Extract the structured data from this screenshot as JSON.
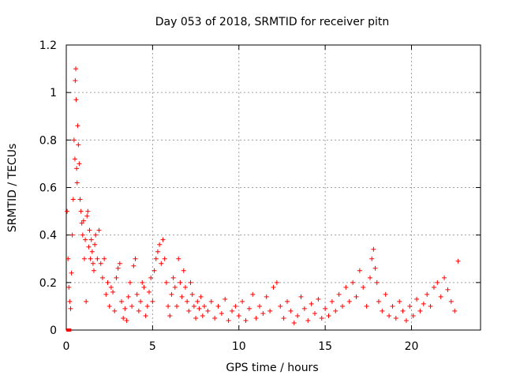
{
  "chart_data": {
    "type": "scatter",
    "title": "Day 053 of 2018, SRMTID for receiver pitn",
    "xlabel": "GPS time / hours",
    "ylabel": "SRMTID / TECUs",
    "xlim": [
      0,
      24
    ],
    "ylim": [
      0,
      1.2
    ],
    "x_ticks": [
      0,
      5,
      10,
      15,
      20
    ],
    "x_tick_labels": [
      "0",
      "5",
      "10",
      "15",
      "20"
    ],
    "y_ticks": [
      0,
      0.2,
      0.4,
      0.6,
      0.8,
      1,
      1.2
    ],
    "y_tick_labels": [
      "0",
      "0.2",
      "0.4",
      "0.6",
      "0.8",
      "1",
      "1.2"
    ],
    "grid": true,
    "marker": "+",
    "series": [
      {
        "name": "SRMTID",
        "color": "#ff0000",
        "points": [
          [
            0.05,
            0.5
          ],
          [
            0.1,
            0.3
          ],
          [
            0.15,
            0.18
          ],
          [
            0.2,
            0.12
          ],
          [
            0.25,
            0.09
          ],
          [
            0.3,
            0.24
          ],
          [
            0.35,
            0.4
          ],
          [
            0.4,
            0.55
          ],
          [
            0.45,
            0.8
          ],
          [
            0.5,
            0.72
          ],
          [
            0.52,
            1.05
          ],
          [
            0.55,
            1.1
          ],
          [
            0.57,
            0.97
          ],
          [
            0.6,
            0.68
          ],
          [
            0.63,
            0.62
          ],
          [
            0.66,
            0.86
          ],
          [
            0.7,
            0.78
          ],
          [
            0.75,
            0.7
          ],
          [
            0.8,
            0.55
          ],
          [
            0.85,
            0.5
          ],
          [
            0.9,
            0.45
          ],
          [
            0.95,
            0.4
          ],
          [
            1.0,
            0.46
          ],
          [
            1.05,
            0.3
          ],
          [
            1.1,
            0.38
          ],
          [
            1.15,
            0.12
          ],
          [
            1.2,
            0.48
          ],
          [
            1.25,
            0.5
          ],
          [
            1.3,
            0.35
          ],
          [
            1.35,
            0.42
          ],
          [
            1.4,
            0.3
          ],
          [
            1.45,
            0.38
          ],
          [
            1.5,
            0.33
          ],
          [
            1.55,
            0.28
          ],
          [
            1.6,
            0.25
          ],
          [
            1.65,
            0.36
          ],
          [
            1.7,
            0.4
          ],
          [
            1.8,
            0.3
          ],
          [
            1.9,
            0.42
          ],
          [
            2.0,
            0.28
          ],
          [
            2.1,
            0.22
          ],
          [
            2.2,
            0.3
          ],
          [
            2.3,
            0.15
          ],
          [
            2.4,
            0.2
          ],
          [
            2.5,
            0.1
          ],
          [
            2.6,
            0.18
          ],
          [
            2.7,
            0.16
          ],
          [
            2.8,
            0.08
          ],
          [
            2.9,
            0.22
          ],
          [
            3.0,
            0.26
          ],
          [
            3.1,
            0.28
          ],
          [
            3.2,
            0.12
          ],
          [
            3.3,
            0.05
          ],
          [
            3.4,
            0.09
          ],
          [
            3.5,
            0.04
          ],
          [
            3.6,
            0.14
          ],
          [
            3.7,
            0.2
          ],
          [
            3.8,
            0.1
          ],
          [
            3.9,
            0.27
          ],
          [
            4.0,
            0.3
          ],
          [
            4.1,
            0.15
          ],
          [
            4.2,
            0.08
          ],
          [
            4.3,
            0.12
          ],
          [
            4.4,
            0.2
          ],
          [
            4.5,
            0.18
          ],
          [
            4.6,
            0.06
          ],
          [
            4.7,
            0.1
          ],
          [
            4.8,
            0.16
          ],
          [
            4.9,
            0.22
          ],
          [
            5.0,
            0.12
          ],
          [
            5.1,
            0.25
          ],
          [
            5.2,
            0.3
          ],
          [
            5.3,
            0.33
          ],
          [
            5.4,
            0.36
          ],
          [
            5.5,
            0.28
          ],
          [
            5.6,
            0.38
          ],
          [
            5.7,
            0.3
          ],
          [
            5.8,
            0.2
          ],
          [
            5.9,
            0.1
          ],
          [
            6.0,
            0.06
          ],
          [
            6.1,
            0.15
          ],
          [
            6.2,
            0.22
          ],
          [
            6.3,
            0.18
          ],
          [
            6.4,
            0.1
          ],
          [
            6.5,
            0.3
          ],
          [
            6.6,
            0.2
          ],
          [
            6.7,
            0.14
          ],
          [
            6.8,
            0.25
          ],
          [
            6.9,
            0.18
          ],
          [
            7.0,
            0.12
          ],
          [
            7.1,
            0.08
          ],
          [
            7.2,
            0.2
          ],
          [
            7.3,
            0.15
          ],
          [
            7.4,
            0.1
          ],
          [
            7.5,
            0.05
          ],
          [
            7.6,
            0.12
          ],
          [
            7.7,
            0.09
          ],
          [
            7.8,
            0.14
          ],
          [
            7.9,
            0.06
          ],
          [
            8.0,
            0.1
          ],
          [
            8.2,
            0.08
          ],
          [
            8.4,
            0.12
          ],
          [
            8.6,
            0.05
          ],
          [
            8.8,
            0.1
          ],
          [
            9.0,
            0.07
          ],
          [
            9.2,
            0.13
          ],
          [
            9.4,
            0.04
          ],
          [
            9.6,
            0.08
          ],
          [
            9.8,
            0.1
          ],
          [
            10.0,
            0.06
          ],
          [
            10.2,
            0.12
          ],
          [
            10.4,
            0.04
          ],
          [
            10.6,
            0.09
          ],
          [
            10.8,
            0.15
          ],
          [
            11.0,
            0.05
          ],
          [
            11.2,
            0.1
          ],
          [
            11.4,
            0.07
          ],
          [
            11.6,
            0.14
          ],
          [
            11.8,
            0.08
          ],
          [
            12.0,
            0.18
          ],
          [
            12.2,
            0.2
          ],
          [
            12.4,
            0.1
          ],
          [
            12.6,
            0.05
          ],
          [
            12.8,
            0.12
          ],
          [
            13.0,
            0.08
          ],
          [
            13.2,
            0.03
          ],
          [
            13.4,
            0.06
          ],
          [
            13.6,
            0.14
          ],
          [
            13.8,
            0.09
          ],
          [
            14.0,
            0.04
          ],
          [
            14.2,
            0.11
          ],
          [
            14.4,
            0.07
          ],
          [
            14.6,
            0.13
          ],
          [
            14.8,
            0.05
          ],
          [
            15.0,
            0.09
          ],
          [
            15.2,
            0.06
          ],
          [
            15.4,
            0.12
          ],
          [
            15.6,
            0.08
          ],
          [
            15.8,
            0.15
          ],
          [
            16.0,
            0.1
          ],
          [
            16.2,
            0.18
          ],
          [
            16.4,
            0.12
          ],
          [
            16.6,
            0.2
          ],
          [
            16.8,
            0.14
          ],
          [
            17.0,
            0.25
          ],
          [
            17.2,
            0.18
          ],
          [
            17.4,
            0.1
          ],
          [
            17.6,
            0.22
          ],
          [
            17.7,
            0.3
          ],
          [
            17.8,
            0.34
          ],
          [
            17.9,
            0.26
          ],
          [
            18.0,
            0.2
          ],
          [
            18.1,
            0.12
          ],
          [
            18.3,
            0.08
          ],
          [
            18.5,
            0.15
          ],
          [
            18.7,
            0.06
          ],
          [
            18.9,
            0.1
          ],
          [
            19.1,
            0.05
          ],
          [
            19.3,
            0.12
          ],
          [
            19.5,
            0.08
          ],
          [
            19.7,
            0.04
          ],
          [
            19.9,
            0.1
          ],
          [
            20.1,
            0.06
          ],
          [
            20.3,
            0.13
          ],
          [
            20.5,
            0.08
          ],
          [
            20.7,
            0.11
          ],
          [
            20.9,
            0.15
          ],
          [
            21.1,
            0.1
          ],
          [
            21.3,
            0.18
          ],
          [
            21.5,
            0.2
          ],
          [
            21.7,
            0.14
          ],
          [
            21.9,
            0.22
          ],
          [
            22.1,
            0.17
          ],
          [
            22.3,
            0.12
          ],
          [
            22.5,
            0.08
          ],
          [
            22.7,
            0.29
          ]
        ]
      }
    ],
    "markers_zero": [
      [
        0.1,
        0
      ],
      [
        0.2,
        0
      ]
    ]
  }
}
